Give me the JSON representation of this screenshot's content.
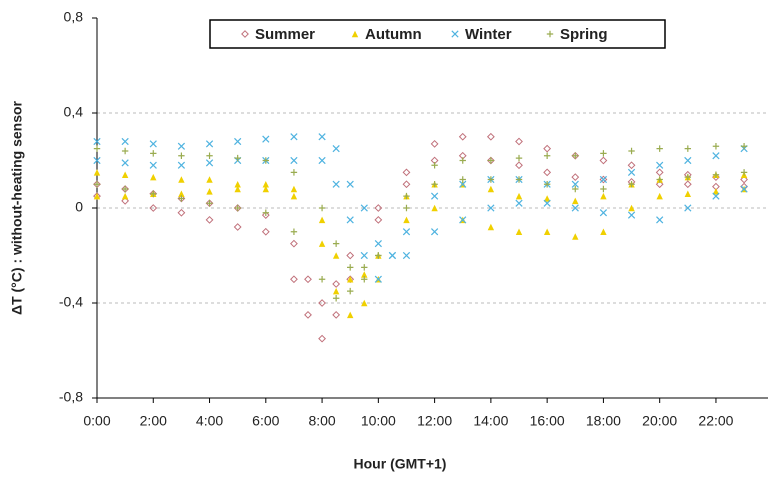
{
  "chart_data": {
    "type": "scatter",
    "xlabel": "Hour (GMT+1)",
    "ylabel": "ΔT (°C) : without-heating sensor",
    "xlim": [
      0,
      23.85
    ],
    "ylim": [
      -0.8,
      0.8
    ],
    "xticks": [
      {
        "value": 0,
        "label": "0:00"
      },
      {
        "value": 2,
        "label": "2:00"
      },
      {
        "value": 4,
        "label": "4:00"
      },
      {
        "value": 6,
        "label": "6:00"
      },
      {
        "value": 8,
        "label": "8:00"
      },
      {
        "value": 10,
        "label": "10:00"
      },
      {
        "value": 12,
        "label": "12:00"
      },
      {
        "value": 14,
        "label": "14:00"
      },
      {
        "value": 16,
        "label": "16:00"
      },
      {
        "value": 18,
        "label": "18:00"
      },
      {
        "value": 20,
        "label": "20:00"
      },
      {
        "value": 22,
        "label": "22:00"
      }
    ],
    "yticks": [
      {
        "value": -0.8,
        "label": "-0,8"
      },
      {
        "value": -0.4,
        "label": "-0,4"
      },
      0,
      {
        "value": 0.4,
        "label": "0,4"
      },
      {
        "value": 0.8,
        "label": "0,8"
      }
    ],
    "grid": true,
    "legend": "top",
    "series": [
      {
        "name": "Summer",
        "color": "#c0707a",
        "marker": "diamond",
        "x": [
          0,
          1,
          2,
          3,
          4,
          5,
          6,
          7,
          7.5,
          8,
          8.5,
          9,
          10,
          11,
          12,
          13,
          14,
          15,
          16,
          17,
          18,
          19,
          20,
          21,
          22,
          23,
          0,
          1,
          2,
          3,
          4,
          5,
          6,
          7,
          7.5,
          8,
          8.5,
          9,
          10,
          11,
          12,
          13,
          14,
          15,
          16,
          17,
          18,
          19,
          20,
          21,
          22,
          23
        ],
        "values": [
          0.05,
          0.03,
          0,
          -0.02,
          -0.05,
          -0.08,
          -0.1,
          -0.3,
          -0.45,
          -0.55,
          -0.45,
          -0.3,
          -0.05,
          0.15,
          0.27,
          0.3,
          0.3,
          0.28,
          0.25,
          0.22,
          0.2,
          0.18,
          0.15,
          0.14,
          0.13,
          0.12,
          0.1,
          0.08,
          0.06,
          0.04,
          0.02,
          0,
          -0.03,
          -0.15,
          -0.3,
          -0.4,
          -0.32,
          -0.2,
          0,
          0.1,
          0.2,
          0.22,
          0.2,
          0.18,
          0.15,
          0.13,
          0.12,
          0.11,
          0.1,
          0.1,
          0.09,
          0.09
        ]
      },
      {
        "name": "Autumn",
        "color": "#f0d000",
        "marker": "triangle",
        "x": [
          0,
          1,
          2,
          3,
          4,
          5,
          6,
          7,
          8,
          8.5,
          9,
          9.5,
          10,
          11,
          12,
          13,
          14,
          15,
          16,
          17,
          18,
          19,
          20,
          21,
          22,
          23,
          0,
          1,
          2,
          3,
          4,
          5,
          6,
          7,
          8,
          8.5,
          9,
          9.5,
          10,
          11,
          12,
          13,
          14,
          15,
          16,
          17,
          18,
          19,
          20,
          21,
          22,
          23
        ],
        "values": [
          0.05,
          0.05,
          0.06,
          0.06,
          0.07,
          0.08,
          0.08,
          0.05,
          -0.15,
          -0.35,
          -0.45,
          -0.4,
          -0.3,
          -0.05,
          0,
          -0.05,
          -0.08,
          -0.1,
          -0.1,
          -0.12,
          -0.1,
          0,
          0.05,
          0.06,
          0.07,
          0.08,
          0.15,
          0.14,
          0.13,
          0.12,
          0.12,
          0.1,
          0.1,
          0.08,
          -0.05,
          -0.2,
          -0.3,
          -0.28,
          -0.2,
          0.05,
          0.1,
          0.1,
          0.08,
          0.05,
          0.04,
          0.03,
          0.05,
          0.1,
          0.12,
          0.13,
          0.14,
          0.14
        ]
      },
      {
        "name": "Winter",
        "color": "#4fb3e0",
        "marker": "x",
        "x": [
          0,
          1,
          2,
          3,
          4,
          5,
          6,
          7,
          8,
          8.5,
          9,
          9.5,
          10,
          10.5,
          11,
          12,
          13,
          14,
          15,
          16,
          17,
          18,
          19,
          20,
          21,
          22,
          23,
          0,
          1,
          2,
          3,
          4,
          5,
          6,
          7,
          8,
          8.5,
          9,
          9.5,
          10,
          10.5,
          11,
          12,
          13,
          14,
          15,
          16,
          17,
          18,
          19,
          20,
          21,
          22,
          23
        ],
        "values": [
          0.28,
          0.28,
          0.27,
          0.26,
          0.27,
          0.28,
          0.29,
          0.3,
          0.3,
          0.25,
          0.1,
          0,
          -0.15,
          -0.2,
          -0.2,
          -0.1,
          -0.05,
          0,
          0.02,
          0.02,
          0,
          -0.02,
          -0.03,
          -0.05,
          0,
          0.05,
          0.08,
          0.2,
          0.19,
          0.18,
          0.18,
          0.19,
          0.2,
          0.2,
          0.2,
          0.2,
          0.1,
          -0.05,
          -0.2,
          -0.3,
          -0.2,
          -0.1,
          0.05,
          0.1,
          0.12,
          0.12,
          0.1,
          0.1,
          0.12,
          0.15,
          0.18,
          0.2,
          0.22,
          0.25
        ]
      },
      {
        "name": "Spring",
        "color": "#9aac50",
        "marker": "plus",
        "x": [
          0,
          1,
          2,
          3,
          4,
          5,
          6,
          7,
          8,
          8.5,
          9,
          9.5,
          10,
          11,
          12,
          13,
          14,
          15,
          16,
          17,
          18,
          19,
          20,
          21,
          22,
          23,
          0,
          1,
          2,
          3,
          4,
          5,
          6,
          7,
          8,
          8.5,
          9,
          9.5,
          10,
          11,
          12,
          13,
          14,
          15,
          16,
          17,
          18,
          19,
          20,
          21,
          22,
          23
        ],
        "values": [
          0.25,
          0.24,
          0.23,
          0.22,
          0.22,
          0.21,
          0.2,
          0.15,
          0,
          -0.15,
          -0.25,
          -0.25,
          -0.2,
          0.05,
          0.18,
          0.2,
          0.2,
          0.21,
          0.22,
          0.22,
          0.23,
          0.24,
          0.25,
          0.25,
          0.26,
          0.26,
          0.1,
          0.08,
          0.06,
          0.04,
          0.02,
          0,
          -0.02,
          -0.1,
          -0.3,
          -0.38,
          -0.35,
          -0.3,
          -0.2,
          0,
          0.1,
          0.12,
          0.12,
          0.12,
          0.1,
          0.08,
          0.08,
          0.1,
          0.12,
          0.13,
          0.14,
          0.15
        ]
      }
    ]
  }
}
